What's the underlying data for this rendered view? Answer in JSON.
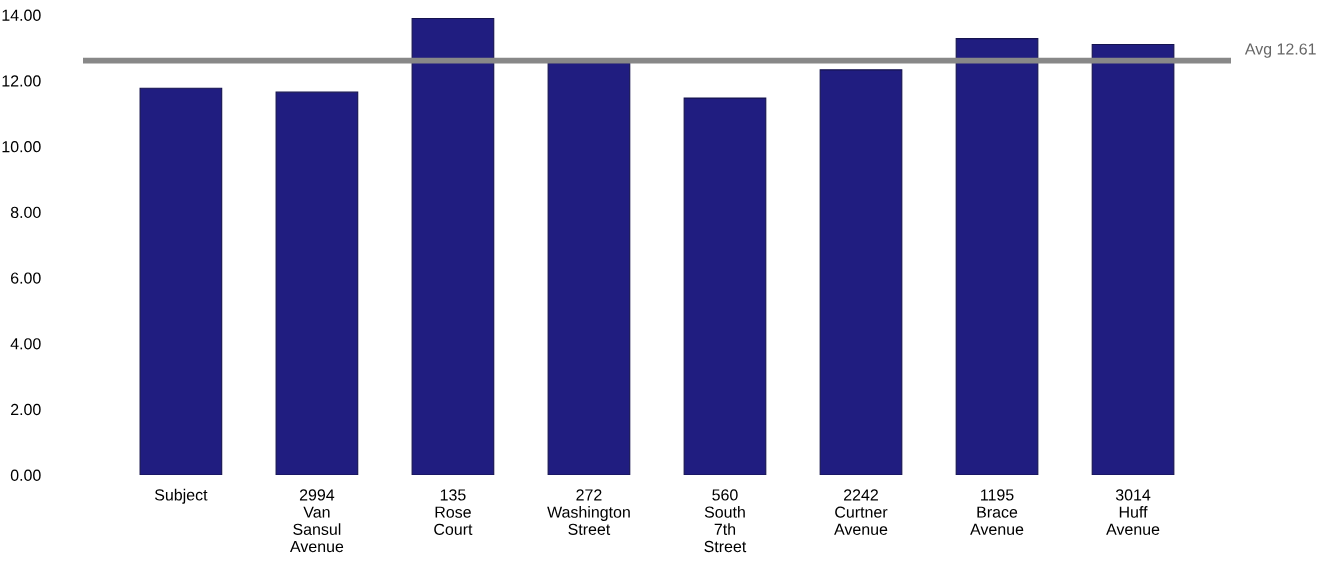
{
  "chart_data": {
    "type": "bar",
    "categories": [
      "Subject",
      "2994\nVan\nSansul\nAvenue",
      "135\nRose\nCourt",
      "272\nWashington\nStreet",
      "560\nSouth\n7th\nStreet",
      "2242\nCurtner\nAvenue",
      "1195\nBrace\nAvenue",
      "3014\nHuff\nAvenue"
    ],
    "values": [
      11.77,
      11.65,
      13.89,
      12.55,
      11.47,
      12.33,
      13.28,
      13.1
    ],
    "color": "#201d80",
    "ylim": [
      0,
      14
    ],
    "yticks": [
      {
        "value": 0,
        "label": "0.00"
      },
      {
        "value": 2,
        "label": "2.00"
      },
      {
        "value": 4,
        "label": "4.00"
      },
      {
        "value": 6,
        "label": "6.00"
      },
      {
        "value": 8,
        "label": "8.00"
      },
      {
        "value": 10,
        "label": "10.00"
      },
      {
        "value": 12,
        "label": "12.00"
      },
      {
        "value": 14,
        "label": "14.00"
      }
    ],
    "ref_lines": [
      {
        "axis": "y",
        "value": 12.61,
        "label": "Avg 12.61",
        "color": "#888888"
      }
    ],
    "grid": false
  }
}
